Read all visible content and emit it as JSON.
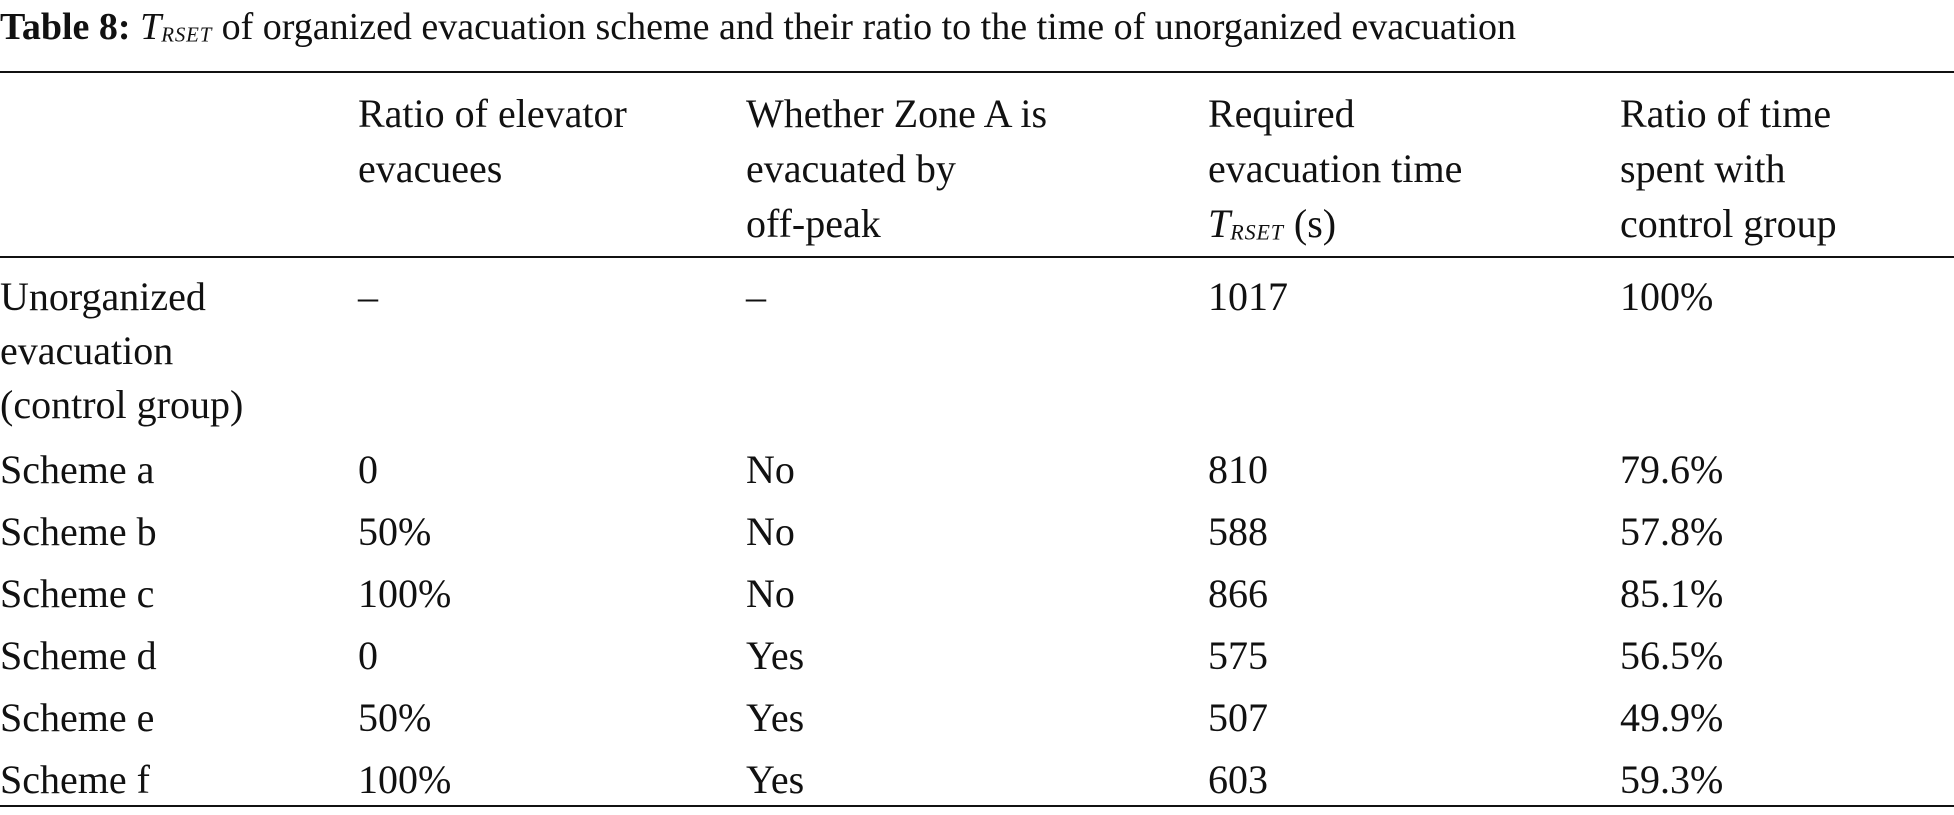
{
  "caption": {
    "label": "Table 8:",
    "symbol": "T",
    "symbol_sub": "RSET",
    "text": " of organized evacuation scheme and their ratio to the time of unorganized evacuation"
  },
  "table": {
    "headers": [
      "",
      "Ratio of elevator\nevacuees",
      "Whether Zone A is\nevacuated by\noff-peak",
      "Required\nevacuation time",
      "Ratio of time\nspent with\ncontrol group"
    ],
    "header_time_symbol": "T",
    "header_time_sub": "RSET",
    "header_time_unit": " (s)",
    "rows": [
      [
        "Unorganized\nevacuation\n(control group)",
        "–",
        "–",
        "1017",
        "100%"
      ],
      [
        "Scheme a",
        "0",
        "No",
        "810",
        "79.6%"
      ],
      [
        "Scheme b",
        "50%",
        "No",
        "588",
        "57.8%"
      ],
      [
        "Scheme c",
        "100%",
        "No",
        "866",
        "85.1%"
      ],
      [
        "Scheme d",
        "0",
        "Yes",
        "575",
        "56.5%"
      ],
      [
        "Scheme e",
        "50%",
        "Yes",
        "507",
        "49.9%"
      ],
      [
        "Scheme f",
        "100%",
        "Yes",
        "603",
        "59.3%"
      ]
    ]
  }
}
